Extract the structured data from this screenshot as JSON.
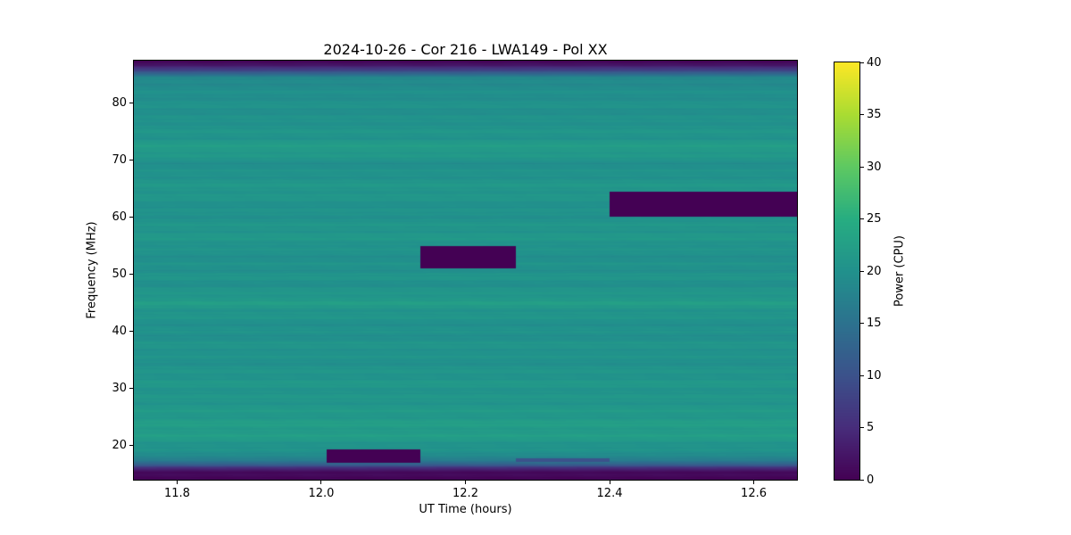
{
  "chart_data": {
    "type": "heatmap",
    "title": "2024-10-26 - Cor 216 - LWA149 - Pol XX",
    "xlabel": "UT Time (hours)",
    "ylabel": "Frequency (MHz)",
    "colormap": "viridis",
    "x_range": [
      11.74,
      12.66
    ],
    "y_range": [
      14.0,
      87.5
    ],
    "x_ticks": [
      {
        "value": 11.8,
        "label": "11.8"
      },
      {
        "value": 12.0,
        "label": "12.0"
      },
      {
        "value": 12.2,
        "label": "12.2"
      },
      {
        "value": 12.4,
        "label": "12.4"
      },
      {
        "value": 12.6,
        "label": "12.6"
      }
    ],
    "y_ticks": [
      {
        "value": 20,
        "label": "20"
      },
      {
        "value": 30,
        "label": "30"
      },
      {
        "value": 40,
        "label": "40"
      },
      {
        "value": 50,
        "label": "50"
      },
      {
        "value": 60,
        "label": "60"
      },
      {
        "value": 70,
        "label": "70"
      },
      {
        "value": 80,
        "label": "80"
      }
    ],
    "colorbar": {
      "label": "Power (CPU)",
      "min": 0,
      "max": 40,
      "ticks": [
        {
          "value": 0,
          "label": "0"
        },
        {
          "value": 5,
          "label": "5"
        },
        {
          "value": 10,
          "label": "10"
        },
        {
          "value": 15,
          "label": "15"
        },
        {
          "value": 20,
          "label": "20"
        },
        {
          "value": 25,
          "label": "25"
        },
        {
          "value": 30,
          "label": "30"
        },
        {
          "value": 35,
          "label": "35"
        },
        {
          "value": 40,
          "label": "40"
        }
      ]
    },
    "background_spectrum": [
      [
        14,
        0
      ],
      [
        15,
        0.6
      ],
      [
        15.5,
        2
      ],
      [
        16,
        5
      ],
      [
        16.5,
        10
      ],
      [
        17,
        14
      ],
      [
        17.5,
        17
      ],
      [
        18,
        19
      ],
      [
        19,
        19.8
      ],
      [
        20,
        20.6
      ],
      [
        21,
        21.5
      ],
      [
        22,
        22
      ],
      [
        24,
        22
      ],
      [
        25,
        21.4
      ],
      [
        27,
        21
      ],
      [
        29,
        20.6
      ],
      [
        31,
        21
      ],
      [
        33,
        20.5
      ],
      [
        35,
        20
      ],
      [
        37,
        20.6
      ],
      [
        39,
        20
      ],
      [
        41,
        20
      ],
      [
        43,
        20.6
      ],
      [
        44,
        21
      ],
      [
        45,
        22
      ],
      [
        46,
        21.4
      ],
      [
        47,
        20.5
      ],
      [
        48,
        20
      ],
      [
        50,
        20.5
      ],
      [
        51,
        20
      ],
      [
        54,
        20
      ],
      [
        55,
        20.6
      ],
      [
        57,
        21
      ],
      [
        59,
        20.5
      ],
      [
        61,
        20
      ],
      [
        63,
        20.5
      ],
      [
        65,
        21
      ],
      [
        67,
        20.5
      ],
      [
        68,
        20
      ],
      [
        70,
        20
      ],
      [
        71,
        21.4
      ],
      [
        72,
        22
      ],
      [
        73,
        21.4
      ],
      [
        74,
        20.6
      ],
      [
        76,
        20.5
      ],
      [
        77,
        20
      ],
      [
        80,
        20
      ],
      [
        82,
        19.6
      ],
      [
        84,
        19
      ],
      [
        84.5,
        18
      ],
      [
        85,
        15
      ],
      [
        85.5,
        11
      ],
      [
        86,
        7
      ],
      [
        86.5,
        3
      ],
      [
        87,
        1
      ],
      [
        87.5,
        0
      ]
    ],
    "rfi_blocks": [
      {
        "t_start": 12.008,
        "t_end": 12.138,
        "f_start": 17.0,
        "f_end": 19.3,
        "value": 0
      },
      {
        "t_start": 12.138,
        "t_end": 12.27,
        "f_start": 51.0,
        "f_end": 55.0,
        "value": 0
      },
      {
        "t_start": 12.4,
        "t_end": 12.66,
        "f_start": 60.2,
        "f_end": 64.5,
        "value": 0
      },
      {
        "t_start": 12.27,
        "t_end": 12.4,
        "f_start": 17.2,
        "f_end": 17.7,
        "value": 10
      }
    ]
  }
}
